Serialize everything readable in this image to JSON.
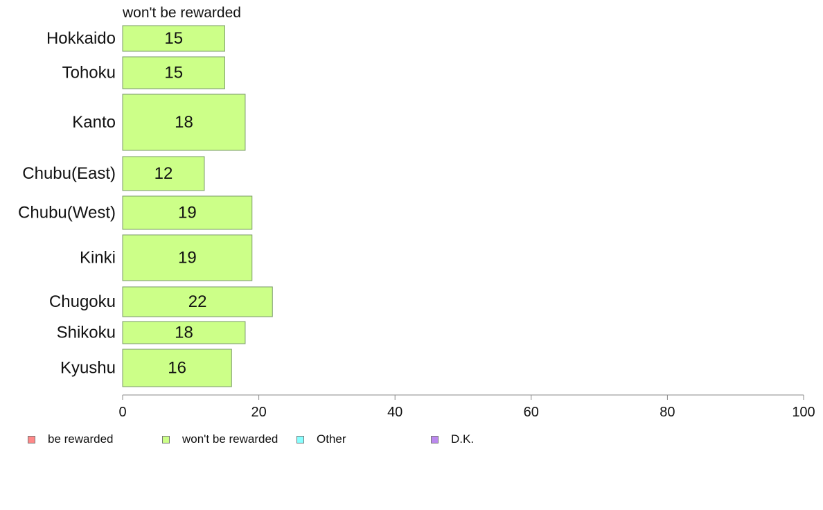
{
  "chart_data": {
    "type": "bar",
    "orientation": "horizontal",
    "title": "won't be rewarded",
    "categories": [
      "Hokkaido",
      "Tohoku",
      "Kanto",
      "Chubu(East)",
      "Chubu(West)",
      "Kinki",
      "Chugoku",
      "Shikoku",
      "Kyushu"
    ],
    "series": [
      {
        "name": "won't be rewarded",
        "color": "#ccff88",
        "values": [
          15,
          15,
          18,
          12,
          19,
          19,
          22,
          18,
          16
        ]
      }
    ],
    "xlim": [
      0,
      100
    ],
    "xticks": [
      "0",
      "20",
      "40",
      "60",
      "80",
      "100"
    ],
    "grid": false,
    "legend_position": "bottom",
    "legend": [
      {
        "label": "be rewarded",
        "color": "#ff8888"
      },
      {
        "label": "won't be rewarded",
        "color": "#ccff88"
      },
      {
        "label": "Other",
        "color": "#88ffff"
      },
      {
        "label": "D.K.",
        "color": "#bb88ee"
      }
    ]
  }
}
